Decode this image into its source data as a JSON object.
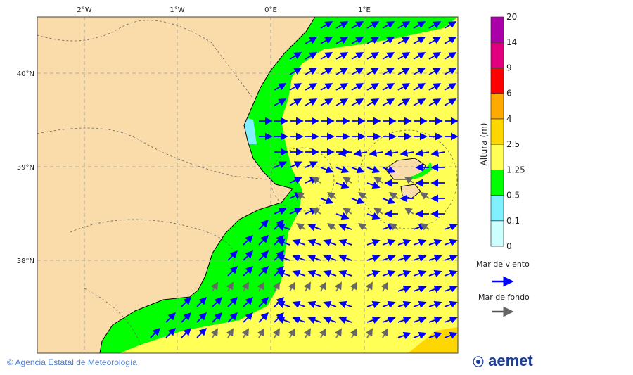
{
  "map": {
    "lon_labels": [
      "2°W",
      "1°W",
      "0°E",
      "1°E"
    ],
    "lat_labels": [
      "40°N",
      "39°N",
      "38°N"
    ]
  },
  "legend": {
    "title": "Altura (m)",
    "levels": [
      "0",
      "0.1",
      "0.5",
      "1.25",
      "2.5",
      "4",
      "6",
      "9",
      "14",
      "20"
    ],
    "colors": [
      "#ccffff",
      "#80f0ff",
      "#00ff00",
      "#ffff55",
      "#ffd700",
      "#ffaa00",
      "#ff0000",
      "#e0007f",
      "#aa00aa"
    ],
    "wind_sea_label": "Mar de viento",
    "wind_sea_color": "#0000ff",
    "swell_label": "Mar de fondo",
    "swell_color": "#555555"
  },
  "footer": {
    "credit": "© Agencia Estatal de Meteorología",
    "logo": "aemet"
  }
}
